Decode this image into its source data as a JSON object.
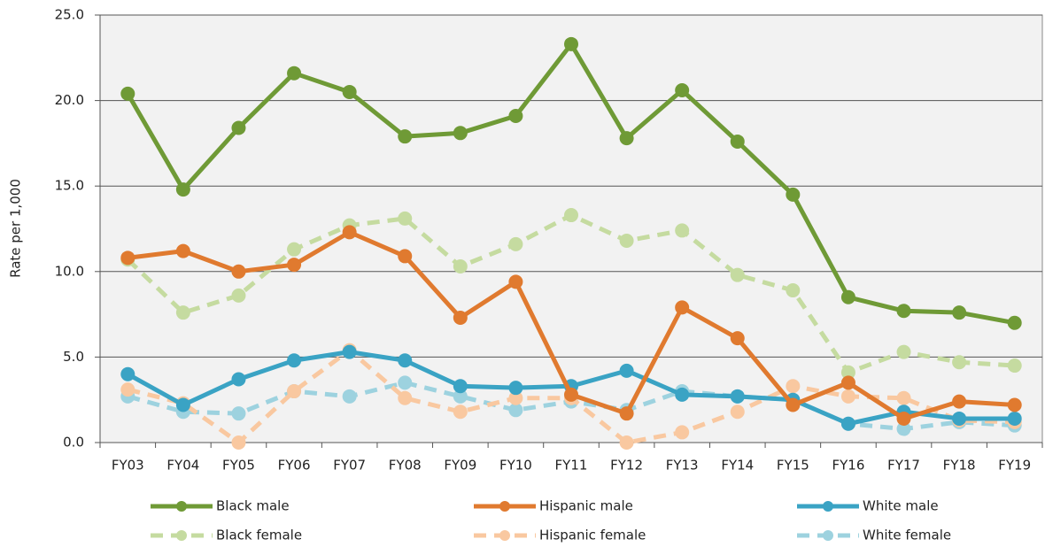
{
  "chart_data": {
    "type": "line",
    "y_label": "Rate per 1,000",
    "categories": [
      "FY03",
      "FY04",
      "FY05",
      "FY06",
      "FY07",
      "FY08",
      "FY09",
      "FY10",
      "FY11",
      "FY12",
      "FY13",
      "FY14",
      "FY15",
      "FY16",
      "FY17",
      "FY18",
      "FY19"
    ],
    "ylim": [
      0,
      25
    ],
    "yticks": [
      {
        "value": 0,
        "label": "0.0"
      },
      {
        "value": 5,
        "label": "5.0"
      },
      {
        "value": 10,
        "label": "10.0"
      },
      {
        "value": 15,
        "label": "15.0"
      },
      {
        "value": 20,
        "label": "20.0"
      },
      {
        "value": 25,
        "label": "25.0"
      }
    ],
    "grid": true,
    "series": [
      {
        "name": "Black male",
        "color": "#6f9a36",
        "line_style": "solid",
        "values": [
          20.4,
          14.8,
          18.4,
          21.6,
          20.5,
          17.9,
          18.1,
          19.1,
          23.3,
          17.8,
          20.6,
          17.6,
          14.5,
          8.5,
          7.7,
          7.6,
          7.0
        ]
      },
      {
        "name": "Hispanic male",
        "color": "#e07a2f",
        "line_style": "solid",
        "values": [
          10.8,
          11.2,
          10.0,
          10.4,
          12.3,
          10.9,
          7.3,
          9.4,
          2.8,
          1.7,
          7.9,
          6.1,
          2.2,
          3.5,
          1.4,
          2.4,
          2.2
        ]
      },
      {
        "name": "White male",
        "color": "#3aa3c4",
        "line_style": "solid",
        "values": [
          4.0,
          2.2,
          3.7,
          4.8,
          5.3,
          4.8,
          3.3,
          3.2,
          3.3,
          4.2,
          2.8,
          2.7,
          2.5,
          1.1,
          1.8,
          1.4,
          1.4
        ]
      },
      {
        "name": "Black female",
        "color": "#c5dba0",
        "line_style": "dashed",
        "values": [
          10.7,
          7.6,
          8.6,
          11.3,
          12.7,
          13.1,
          10.3,
          11.6,
          13.3,
          11.8,
          12.4,
          9.8,
          8.9,
          4.1,
          5.3,
          4.7,
          4.5
        ]
      },
      {
        "name": "Hispanic female",
        "color": "#f9c8a0",
        "line_style": "dashed",
        "values": [
          3.1,
          2.3,
          0.0,
          3.0,
          5.4,
          2.6,
          1.8,
          2.6,
          2.6,
          0.0,
          0.6,
          1.8,
          3.3,
          2.7,
          2.6,
          1.3,
          1.2
        ]
      },
      {
        "name": "White female",
        "color": "#9dd2df",
        "line_style": "dashed",
        "values": [
          2.7,
          1.8,
          1.7,
          3.0,
          2.7,
          3.5,
          2.7,
          1.9,
          2.4,
          1.9,
          3.0,
          2.7,
          2.5,
          1.1,
          0.8,
          1.2,
          1.0
        ]
      }
    ]
  }
}
